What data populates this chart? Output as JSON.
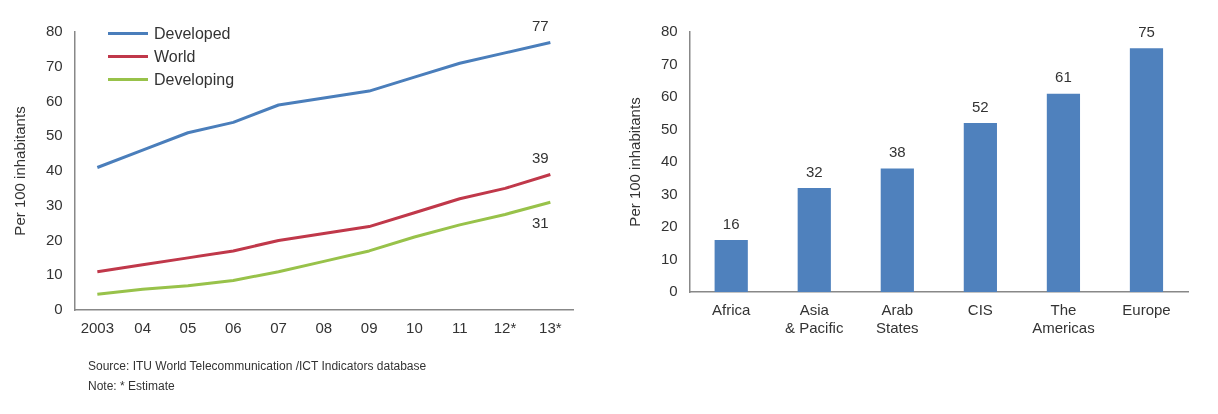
{
  "chart_data": [
    {
      "type": "line",
      "ylabel": "Per 100 inhabitants",
      "categories": [
        "2003",
        "04",
        "05",
        "06",
        "07",
        "08",
        "09",
        "10",
        "11",
        "12*",
        "13*"
      ],
      "ylim": [
        0,
        80
      ],
      "yticks": [
        0,
        10,
        20,
        30,
        40,
        50,
        60,
        70,
        80
      ],
      "grid": false,
      "legend": "top left",
      "marker": "none",
      "line_style": "solid",
      "series": [
        {
          "name": "Developed",
          "color": "#4a7ebb",
          "values": [
            41,
            46,
            51,
            54,
            59,
            61,
            63,
            67,
            71,
            74,
            77
          ],
          "value_labels": [
            null,
            null,
            null,
            null,
            null,
            null,
            null,
            null,
            null,
            null,
            "77"
          ]
        },
        {
          "name": "World",
          "color": "#c0384a",
          "values": [
            11,
            13,
            15,
            17,
            20,
            22,
            24,
            28,
            32,
            35,
            39
          ],
          "value_labels": [
            null,
            null,
            null,
            null,
            null,
            null,
            null,
            null,
            null,
            null,
            "39"
          ]
        },
        {
          "name": "Developing",
          "color": "#98c24a",
          "values": [
            4.5,
            6,
            7,
            8.5,
            11,
            14,
            17,
            21,
            24.5,
            27.5,
            31
          ],
          "value_labels": [
            null,
            null,
            null,
            null,
            null,
            null,
            null,
            null,
            null,
            null,
            "31"
          ]
        }
      ],
      "annotations": [
        "Source:  ITU World Telecommunication /ICT Indicators database",
        "Note: * Estimate"
      ]
    },
    {
      "type": "bar",
      "ylabel": "Per 100 inhabitants",
      "categories": [
        "Africa",
        "Asia\n& Pacific",
        "Arab\nStates",
        "CIS",
        "The\nAmericas",
        "Europe"
      ],
      "values": [
        16,
        32,
        38,
        52,
        61,
        75
      ],
      "color": "#4f81bd",
      "ylim": [
        0,
        80
      ],
      "yticks": [
        0,
        10,
        20,
        30,
        40,
        50,
        60,
        70,
        80
      ],
      "grid": false,
      "legend": false,
      "data_labels": true
    }
  ]
}
